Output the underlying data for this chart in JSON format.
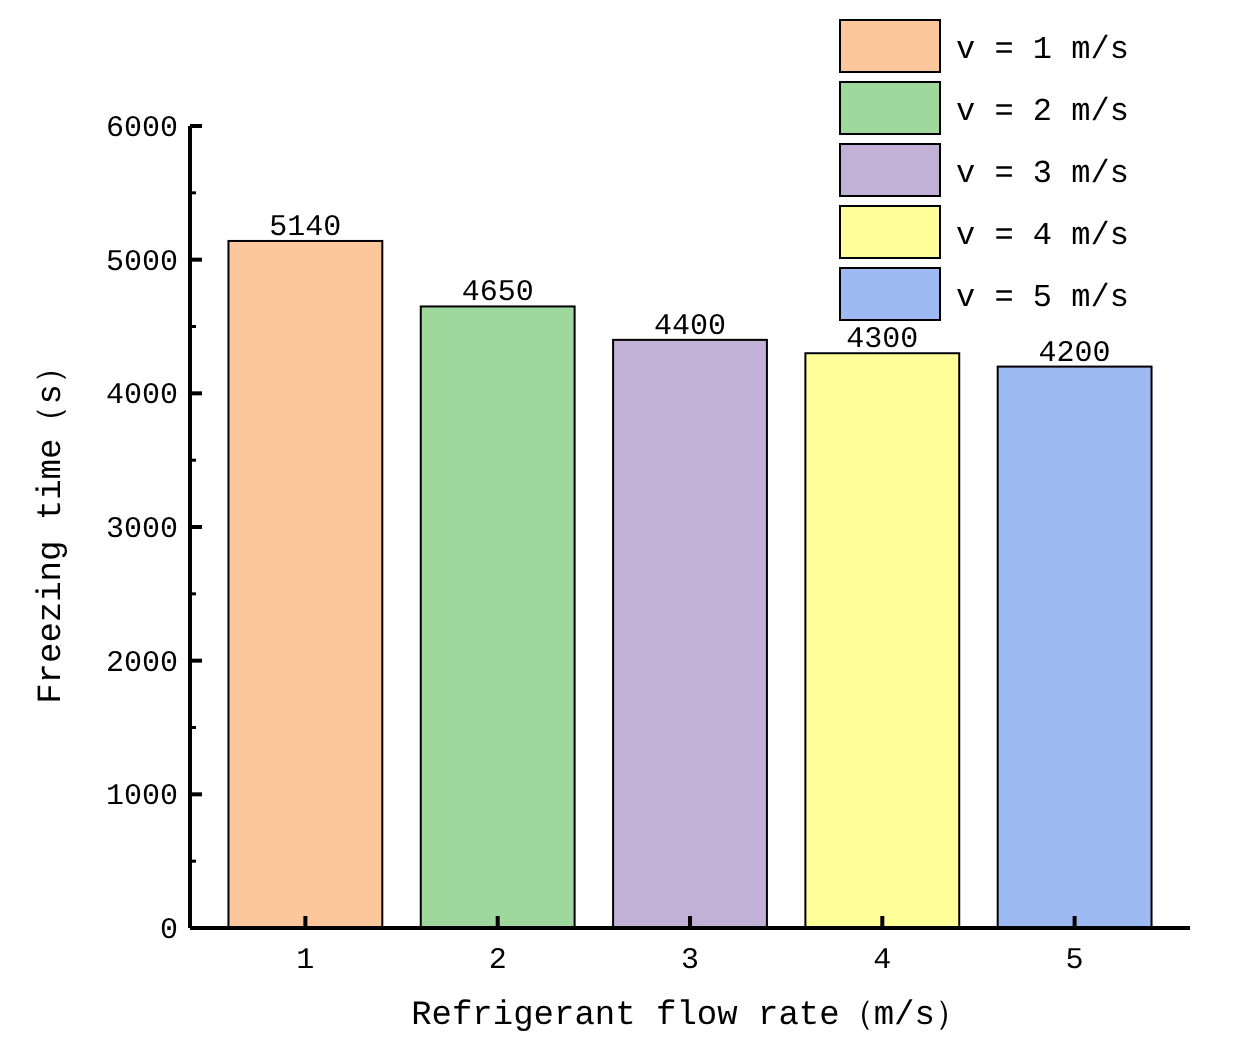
{
  "chart_data": {
    "type": "bar",
    "xlabel": "Refrigerant flow rate（m/s）",
    "ylabel": "Freezing time（s）",
    "categories": [
      "1",
      "2",
      "3",
      "4",
      "5"
    ],
    "series": [
      {
        "name": "v = 1 m/s",
        "color": "#fcc89b",
        "values": [
          5140,
          null,
          null,
          null,
          null
        ]
      },
      {
        "name": "v = 2 m/s",
        "color": "#9fd89d",
        "values": [
          null,
          4650,
          null,
          null,
          null
        ]
      },
      {
        "name": "v = 3 m/s",
        "color": "#c2b1d6",
        "values": [
          null,
          null,
          4400,
          null,
          null
        ]
      },
      {
        "name": "v = 4 m/s",
        "color": "#ffff99",
        "values": [
          null,
          null,
          null,
          4300,
          null
        ]
      },
      {
        "name": "v = 5 m/s",
        "color": "#9dbaf2",
        "values": [
          null,
          null,
          null,
          null,
          4200
        ]
      }
    ],
    "ylim": [
      0,
      6000
    ],
    "yticks": [
      0,
      1000,
      2000,
      3000,
      4000,
      5000,
      6000
    ],
    "data_labels": true,
    "legend": "top right",
    "grid": false
  }
}
